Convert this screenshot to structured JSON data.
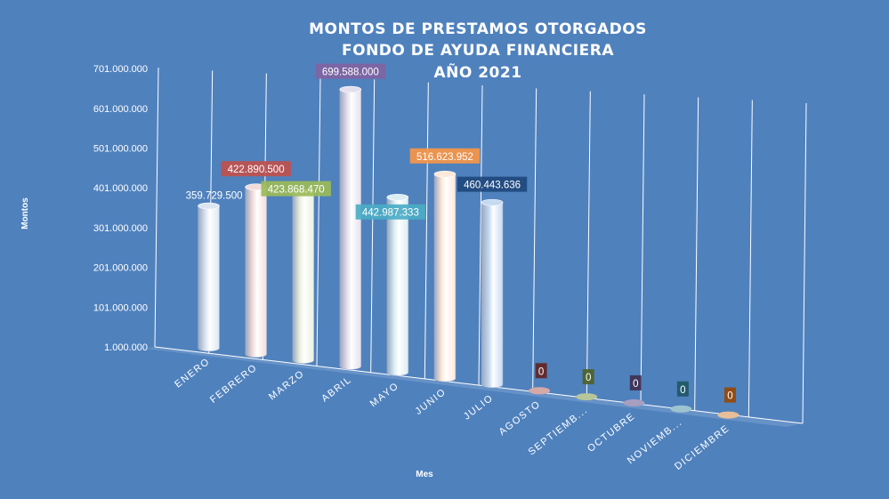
{
  "chart_data": {
    "type": "bar",
    "title_lines": [
      "MONTOS  DE  PRESTAMOS  OTORGADOS",
      "FONDO DE AYUDA  FINANCIERA",
      "AÑO 2021"
    ],
    "xlabel": "Mes",
    "ylabel": "Montos",
    "y_ticks": [
      "1.000.000",
      "101.000.000",
      "201.000.000",
      "301.000.000",
      "401.000.000",
      "501.000.000",
      "601.000.000",
      "701.000.000"
    ],
    "ylim": [
      1000000,
      701000000
    ],
    "grid": true,
    "categories": [
      "ENERO",
      "FEBRERO",
      "MARZO",
      "ABRIL",
      "MAYO",
      "JUNIO",
      "JULIO",
      "AGOSTO",
      "SEPTIEMB...",
      "OCTUBRE",
      "NOVIEMB...",
      "DICIEMBRE"
    ],
    "values": [
      359729500,
      422890500,
      423868470,
      699588000,
      442987333,
      516623952,
      460443636,
      0,
      0,
      0,
      0,
      0
    ],
    "data_labels": [
      "359.729.500",
      "422.890.500",
      "423.868.470",
      "699.588.000",
      "442.987.333",
      "516.623.952",
      "460.443.636",
      "0",
      "0",
      "0",
      "0",
      "0"
    ],
    "bar_colors": [
      "#dce6f2",
      "#f2dcdb",
      "#ebf1de",
      "#e4dfec",
      "#dbeef4",
      "#fde9d9",
      "#c5d9f1",
      "#d6a9a8",
      "#b7c69a",
      "#a79ec0",
      "#9dc3cf",
      "#e8bf98"
    ],
    "label_box_colors": [
      "",
      "#c0504d",
      "#9bbb59",
      "#8064a2",
      "#4bacc6",
      "#f79646",
      "#1f497d",
      "#632523",
      "#4f6228",
      "#3f3151",
      "#205867",
      "#974806"
    ]
  }
}
